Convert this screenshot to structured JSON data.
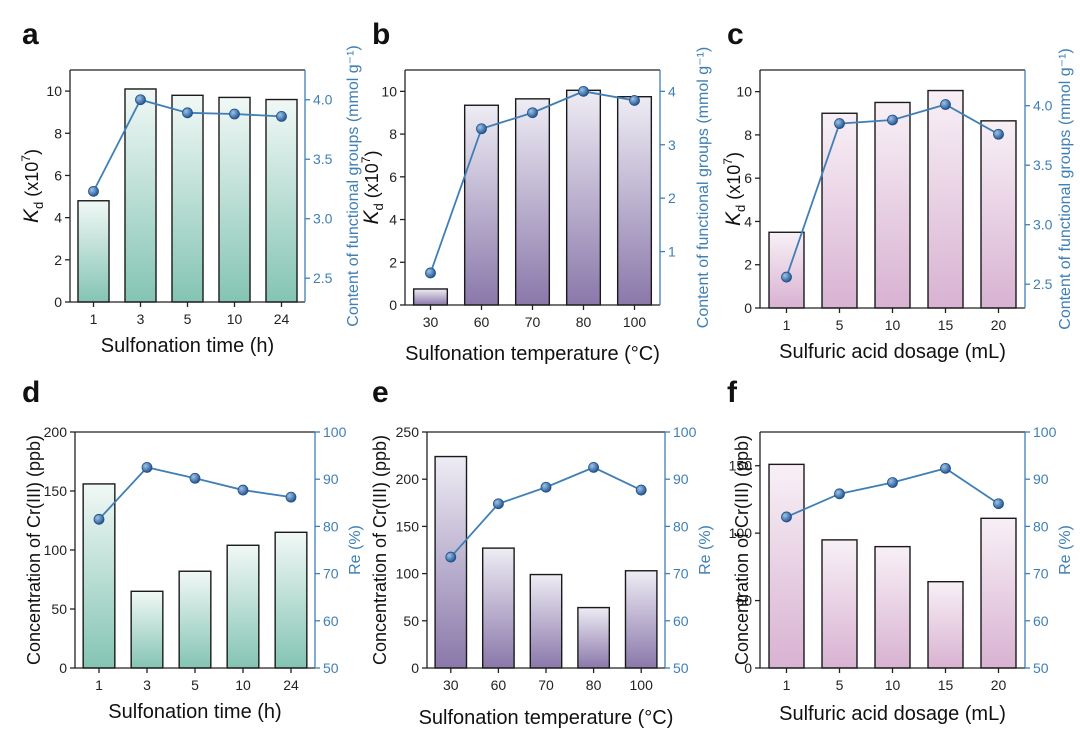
{
  "chart_data": [
    {
      "panel": "a",
      "type": "bar+line",
      "gradient": "teal",
      "categories": [
        "1",
        "3",
        "5",
        "10",
        "24"
      ],
      "bar_values": [
        4.8,
        10.1,
        9.8,
        9.7,
        9.6
      ],
      "line_values": [
        3.23,
        4.0,
        3.89,
        3.88,
        3.86
      ],
      "ylim": [
        0,
        11
      ],
      "yticks": [
        0,
        2,
        4,
        6,
        8,
        10
      ],
      "y2lim": [
        2.3,
        4.25
      ],
      "y2ticks": [
        2.5,
        3.0,
        3.5,
        4.0
      ],
      "y2tick_labels": [
        "2.5",
        "3.0",
        "3.5",
        "4.0"
      ],
      "xlabel": "Sulfonation time (h)",
      "ylabel": {
        "main": "K",
        "sub": "d",
        "rest": " (x10",
        "sup": "7",
        "end": ")"
      },
      "y2label": "Content of functional groups  (mmol g⁻¹)"
    },
    {
      "panel": "b",
      "type": "bar+line",
      "gradient": "purple",
      "categories": [
        "30",
        "60",
        "70",
        "80",
        "100"
      ],
      "bar_values": [
        0.75,
        9.35,
        9.65,
        10.05,
        9.75
      ],
      "line_values": [
        0.6,
        3.3,
        3.6,
        4.0,
        3.83
      ],
      "ylim": [
        0,
        11
      ],
      "yticks": [
        0,
        2,
        4,
        6,
        8,
        10
      ],
      "y2lim": [
        0,
        4.4
      ],
      "y2ticks": [
        1,
        2,
        3,
        4
      ],
      "y2tick_labels": [
        "1",
        "2",
        "3",
        "4"
      ],
      "xlabel": "Sulfonation temperature (°C)",
      "ylabel": {
        "main": "K",
        "sub": "d",
        "rest": " (x10",
        "sup": "7",
        "end": ")"
      },
      "y2label": "Content of functional groups  (mmol g⁻¹)"
    },
    {
      "panel": "c",
      "type": "bar+line",
      "gradient": "pink",
      "categories": [
        "1",
        "5",
        "10",
        "15",
        "20"
      ],
      "bar_values": [
        3.5,
        9.0,
        9.5,
        10.05,
        8.65
      ],
      "line_values": [
        2.56,
        3.85,
        3.88,
        4.01,
        3.76
      ],
      "ylim": [
        0,
        11
      ],
      "yticks": [
        0,
        2,
        4,
        6,
        8,
        10
      ],
      "y2lim": [
        2.3,
        4.3
      ],
      "y2ticks": [
        2.5,
        3.0,
        3.5,
        4.0
      ],
      "y2tick_labels": [
        "2.5",
        "3.0",
        "3.5",
        "4.0"
      ],
      "xlabel": "Sulfuric acid dosage (mL)",
      "ylabel": {
        "main": "K",
        "sub": "d",
        "rest": " (x10",
        "sup": "7",
        "end": ")"
      },
      "y2label": "Content of functional groups  (mmol g⁻¹)"
    },
    {
      "panel": "d",
      "type": "bar+line",
      "gradient": "teal",
      "categories": [
        "1",
        "3",
        "5",
        "10",
        "24"
      ],
      "bar_values": [
        156,
        65,
        82,
        104,
        115
      ],
      "line_values": [
        81.5,
        92.5,
        90.2,
        87.7,
        86.2
      ],
      "ylim": [
        0,
        200
      ],
      "yticks": [
        0,
        50,
        100,
        150,
        200
      ],
      "y2lim": [
        50,
        100
      ],
      "y2ticks": [
        50,
        60,
        70,
        80,
        90,
        100
      ],
      "y2tick_labels": [
        "50",
        "60",
        "70",
        "80",
        "90",
        "100"
      ],
      "xlabel": "Sulfonation time (h)",
      "ylabel": {
        "main": "Concentration of Cr(III) (ppb)"
      },
      "y2label": "Re (%)"
    },
    {
      "panel": "e",
      "type": "bar+line",
      "gradient": "purple",
      "categories": [
        "30",
        "60",
        "70",
        "80",
        "100"
      ],
      "bar_values": [
        224,
        127,
        99,
        64,
        103
      ],
      "line_values": [
        73.5,
        84.8,
        88.3,
        92.5,
        87.7
      ],
      "ylim": [
        0,
        250
      ],
      "yticks": [
        0,
        50,
        100,
        150,
        200,
        250
      ],
      "y2lim": [
        50,
        100
      ],
      "y2ticks": [
        50,
        60,
        70,
        80,
        90,
        100
      ],
      "y2tick_labels": [
        "50",
        "60",
        "70",
        "80",
        "90",
        "100"
      ],
      "xlabel": "Sulfonation temperature (°C)",
      "ylabel": {
        "main": "Concentration of Cr(III) (ppb)"
      },
      "y2label": "Re (%)"
    },
    {
      "panel": "f",
      "type": "bar+line",
      "gradient": "pink",
      "categories": [
        "1",
        "5",
        "10",
        "15",
        "20"
      ],
      "bar_values": [
        151,
        95,
        90,
        64,
        111
      ],
      "line_values": [
        82,
        86.9,
        89.3,
        92.3,
        84.8
      ],
      "ylim": [
        0,
        175
      ],
      "yticks": [
        0,
        50,
        100,
        150
      ],
      "y2lim": [
        50,
        100
      ],
      "y2ticks": [
        50,
        60,
        70,
        80,
        90,
        100
      ],
      "y2tick_labels": [
        "50",
        "60",
        "70",
        "80",
        "90",
        "100"
      ],
      "xlabel": "Sulfuric acid dosage (mL)",
      "ylabel": {
        "main": "Concentration of Cr(III) (ppb)"
      },
      "y2label": "Re (%)"
    }
  ],
  "colors": {
    "line": "#3f7fb5",
    "marker": "#2f5f9a",
    "teal": [
      "#f1f8f6",
      "#84c4b3"
    ],
    "purple": [
      "#eeecf4",
      "#8a78aa"
    ],
    "pink": [
      "#f8f0f6",
      "#d8b2d2"
    ]
  }
}
